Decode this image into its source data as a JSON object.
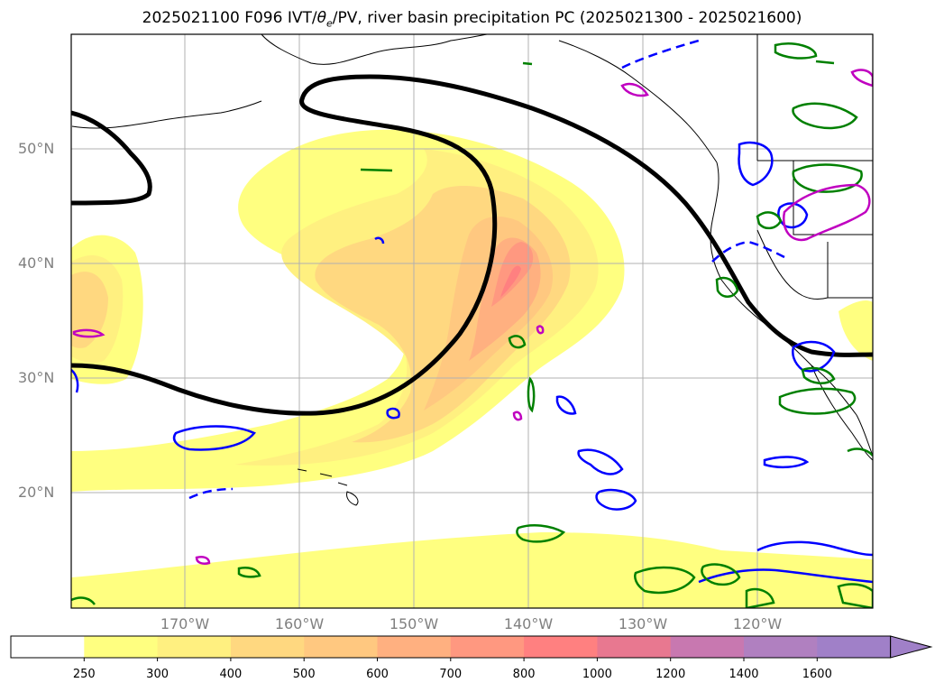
{
  "title_prefix": "2025021100 F096 IVT/",
  "title_theta": "θ",
  "title_sub": "e",
  "title_suffix": "/PV, river basin precipitation PC (2025021300 - 2025021600)",
  "lat_labels": [
    "50°N",
    "40°N",
    "30°N",
    "20°N"
  ],
  "lon_labels": [
    "170°W",
    "160°W",
    "150°W",
    "140°W",
    "130°W",
    "120°W"
  ],
  "colorbar": {
    "ticks": [
      "250",
      "300",
      "400",
      "500",
      "600",
      "700",
      "800",
      "1000",
      "1200",
      "1400",
      "1600"
    ],
    "colors": [
      "#ffffff",
      "#ffff80",
      "#fff080",
      "#ffd880",
      "#ffc880",
      "#ffb080",
      "#ff9880",
      "#ff8080",
      "#e87890",
      "#c878b0",
      "#b080c0",
      "#a080c8"
    ]
  },
  "contour_colors": {
    "pv": "#000000",
    "theta_e_neg": "#0000ff",
    "theta_e_pos": "#008000",
    "precip": "#c000c0"
  }
}
